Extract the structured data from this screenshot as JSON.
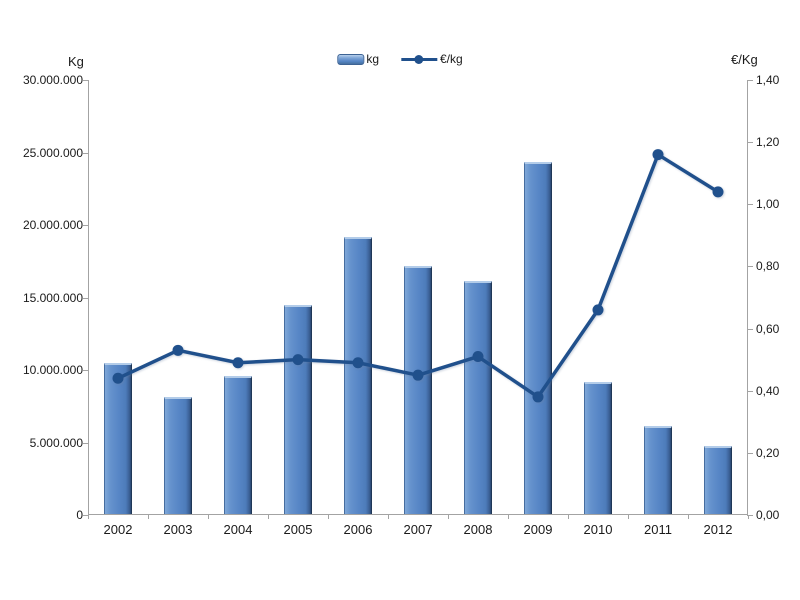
{
  "legend": {
    "items": [
      {
        "label": "kg",
        "swatch": "bar-swatch"
      },
      {
        "label": "€/kg",
        "swatch": "line-swatch"
      }
    ]
  },
  "chart_data": {
    "type": "bar+line combo",
    "categories": [
      "2002",
      "2003",
      "2004",
      "2005",
      "2006",
      "2007",
      "2008",
      "2009",
      "2010",
      "2011",
      "2012"
    ],
    "series": [
      {
        "name": "kg",
        "type": "bar",
        "axis": "left",
        "values": [
          10400000,
          8100000,
          9500000,
          14400000,
          19100000,
          17100000,
          16100000,
          24300000,
          9100000,
          6100000,
          4700000
        ]
      },
      {
        "name": "€/kg",
        "type": "line",
        "axis": "right",
        "values": [
          0.44,
          0.53,
          0.49,
          0.5,
          0.49,
          0.45,
          0.51,
          0.38,
          0.66,
          1.16,
          1.04
        ]
      }
    ],
    "left_axis": {
      "title": "Kg",
      "min": 0,
      "max": 30000000,
      "step": 5000000,
      "tick_labels": [
        "0",
        "5.000.000",
        "10.000.000",
        "15.000.000",
        "20.000.000",
        "25.000.000",
        "30.000.000"
      ]
    },
    "right_axis": {
      "title": "€/Kg",
      "min": 0,
      "max": 1.4,
      "step": 0.2,
      "tick_labels": [
        "0,00",
        "0,20",
        "0,40",
        "0,60",
        "0,80",
        "1,00",
        "1,20",
        "1,40"
      ]
    },
    "legend_position": "top-center",
    "grid": "off",
    "colors": {
      "bar_fill": "#5685c5",
      "bar_highlight": "#b3cce9",
      "bar_shadow": "#2b4870",
      "line": "#20508c",
      "axis": "#a3a3a3",
      "text": "#1a1a1a",
      "background": "#ffffff"
    }
  }
}
